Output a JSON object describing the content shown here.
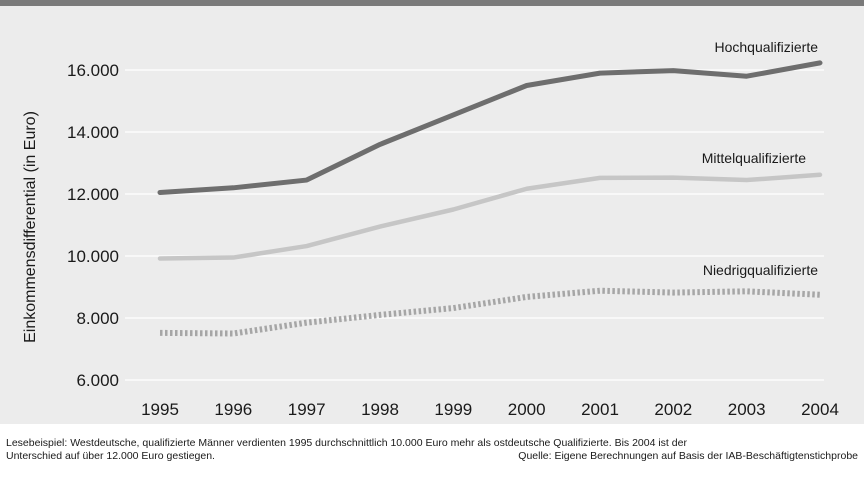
{
  "chart_data": {
    "type": "line",
    "ylabel": "Einkommensdifferential (in Euro)",
    "xlabel": "",
    "ylim": [
      6000,
      16000
    ],
    "y_ticks": [
      6000,
      8000,
      10000,
      12000,
      14000,
      16000
    ],
    "y_tick_labels": [
      "6.000",
      "8.000",
      "10.000",
      "12.000",
      "14.000",
      "16.000"
    ],
    "categories": [
      "1995",
      "1996",
      "1997",
      "1998",
      "1999",
      "2000",
      "2001",
      "2002",
      "2003",
      "2004"
    ],
    "grid": "horizontal",
    "series": [
      {
        "name": "Hochqualifizierte",
        "values": [
          12050,
          12200,
          12450,
          13600,
          14550,
          15500,
          15900,
          15980,
          15800,
          16230
        ],
        "color": "#6e6e6e",
        "style": "solid"
      },
      {
        "name": "Mittelqualifizierte",
        "values": [
          9920,
          9950,
          10320,
          10950,
          11500,
          12170,
          12520,
          12530,
          12450,
          12620
        ],
        "color": "#c6c6c6",
        "style": "solid"
      },
      {
        "name": "Niedrigqualifizierte",
        "values": [
          7520,
          7500,
          7850,
          8100,
          8320,
          8680,
          8880,
          8820,
          8860,
          8750
        ],
        "color": "#a6a6a6",
        "style": "dotted"
      }
    ]
  },
  "caption": {
    "line1": "Lesebeispiel: Westdeutsche, qualifizierte Männer verdienten 1995 durchschnittlich 10.000 Euro mehr als ostdeutsche Qualifizierte. Bis 2004 ist der",
    "line2": "Unterschied auf über 12.000 Euro gestiegen.",
    "source": "Quelle: Eigene Berechnungen auf Basis der IAB-Beschäftigtenstichprobe"
  }
}
